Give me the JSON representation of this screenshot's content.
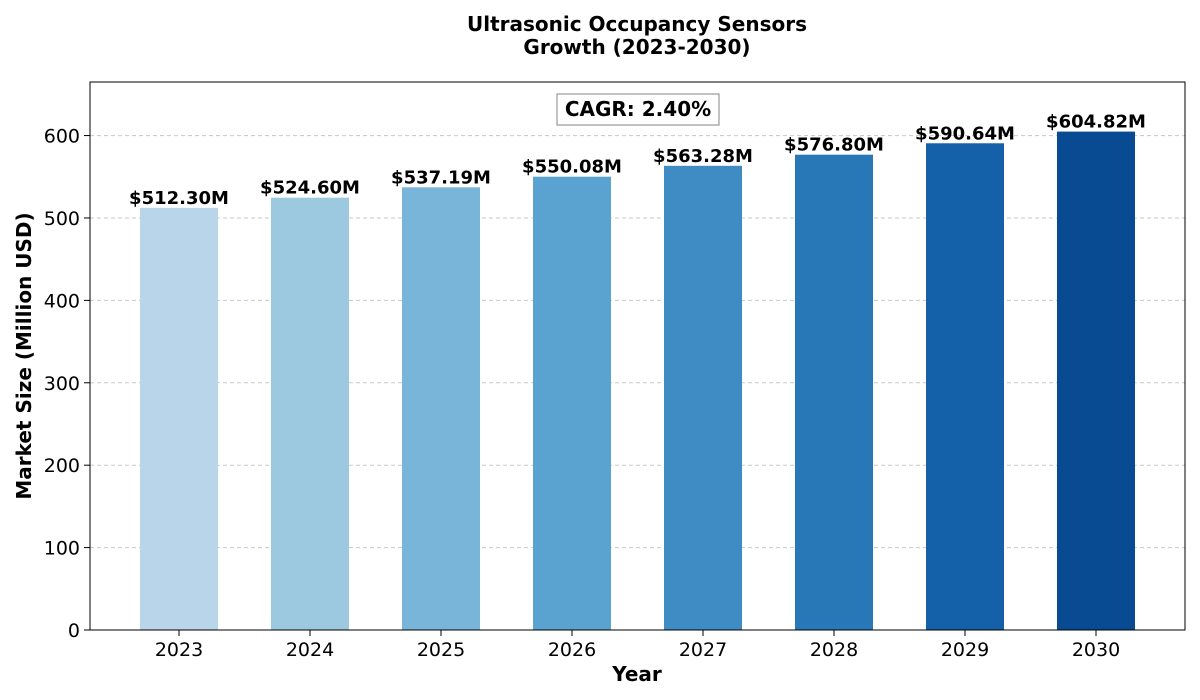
{
  "chart_data": {
    "type": "bar",
    "title_line1": "Ultrasonic Occupancy Sensors",
    "title_line2": "Growth (2023-2030)",
    "xlabel": "Year",
    "ylabel": "Market Size (Million USD)",
    "categories": [
      "2023",
      "2024",
      "2025",
      "2026",
      "2027",
      "2028",
      "2029",
      "2030"
    ],
    "values": [
      512.3,
      524.6,
      537.19,
      550.08,
      563.28,
      576.8,
      590.64,
      604.82
    ],
    "value_labels": [
      "$512.30M",
      "$524.60M",
      "$537.19M",
      "$550.08M",
      "$563.28M",
      "$576.80M",
      "$590.64M",
      "$604.82M"
    ],
    "bar_colors": [
      "#b9d5ea",
      "#9cc8e0",
      "#79b5d9",
      "#5aa2cf",
      "#3f8cc5",
      "#2878b8",
      "#1461aa",
      "#084b92"
    ],
    "yticks": [
      0,
      100,
      200,
      300,
      400,
      500,
      600
    ],
    "ylim": [
      0,
      665
    ],
    "grid": "horizontal dashed",
    "annotation": "CAGR: 2.40%"
  }
}
